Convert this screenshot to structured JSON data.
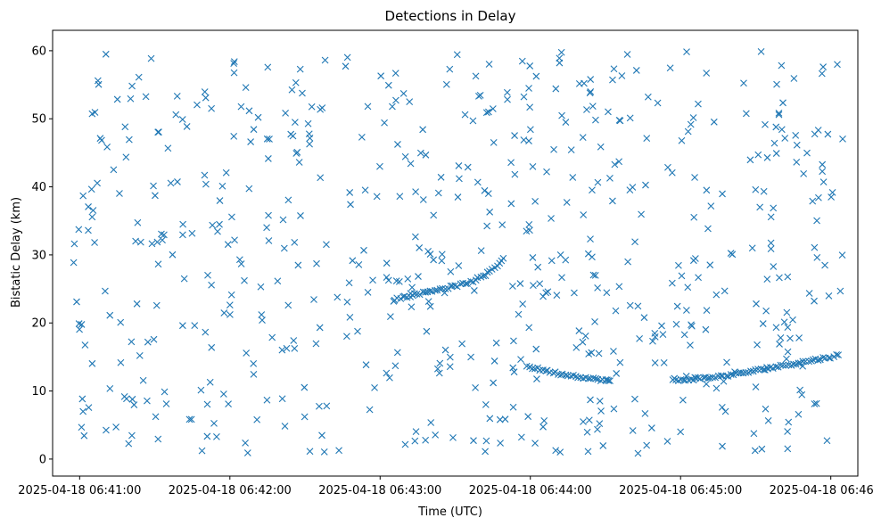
{
  "chart_data": {
    "type": "scatter",
    "title": "Detections in Delay",
    "xlabel": "Time (UTC)",
    "ylabel": "Bistatic Delay (km)",
    "marker": "x",
    "color": "#1f77b4",
    "grid": false,
    "xlim_minutes": [
      -0.18,
      5.18
    ],
    "ylim": [
      -2.5,
      63
    ],
    "x_ticks": [
      {
        "value": 0,
        "label": "2025-04-18 06:41:00"
      },
      {
        "value": 1,
        "label": "2025-04-18 06:42:00"
      },
      {
        "value": 2,
        "label": "2025-04-18 06:43:00"
      },
      {
        "value": 3,
        "label": "2025-04-18 06:44:00"
      },
      {
        "value": 4,
        "label": "2025-04-18 06:45:00"
      },
      {
        "value": 5,
        "label": "2025-04-18 06:46:00"
      }
    ],
    "y_ticks": [
      {
        "value": 0,
        "label": "0"
      },
      {
        "value": 10,
        "label": "10"
      },
      {
        "value": 20,
        "label": "20"
      },
      {
        "value": 30,
        "label": "30"
      },
      {
        "value": 40,
        "label": "40"
      },
      {
        "value": 50,
        "label": "50"
      },
      {
        "value": 60,
        "label": "60"
      }
    ],
    "tracks": [
      {
        "name": "",
        "points": [
          [
            2.1,
            23.5
          ],
          [
            2.2,
            24.0
          ],
          [
            2.3,
            24.5
          ],
          [
            2.4,
            25.0
          ],
          [
            2.5,
            25.4
          ],
          [
            2.6,
            26.0
          ],
          [
            2.7,
            27.0
          ],
          [
            2.78,
            28.5
          ],
          [
            2.82,
            29.5
          ]
        ]
      },
      {
        "name": "",
        "points": [
          [
            2.98,
            13.6
          ],
          [
            3.1,
            13.0
          ],
          [
            3.2,
            12.5
          ],
          [
            3.3,
            12.2
          ],
          [
            3.4,
            11.8
          ],
          [
            3.5,
            11.6
          ],
          [
            3.53,
            11.5
          ]
        ]
      },
      {
        "name": "",
        "points": [
          [
            3.95,
            11.5
          ],
          [
            4.1,
            11.8
          ],
          [
            4.25,
            12.1
          ],
          [
            4.4,
            12.6
          ],
          [
            4.55,
            13.2
          ],
          [
            4.7,
            13.8
          ],
          [
            4.85,
            14.4
          ],
          [
            5.0,
            15.0
          ],
          [
            5.05,
            15.3
          ]
        ]
      }
    ],
    "noise": {
      "name": "",
      "count": 620,
      "x_range": [
        -0.05,
        5.1
      ],
      "y_range": [
        0.8,
        60
      ]
    }
  }
}
